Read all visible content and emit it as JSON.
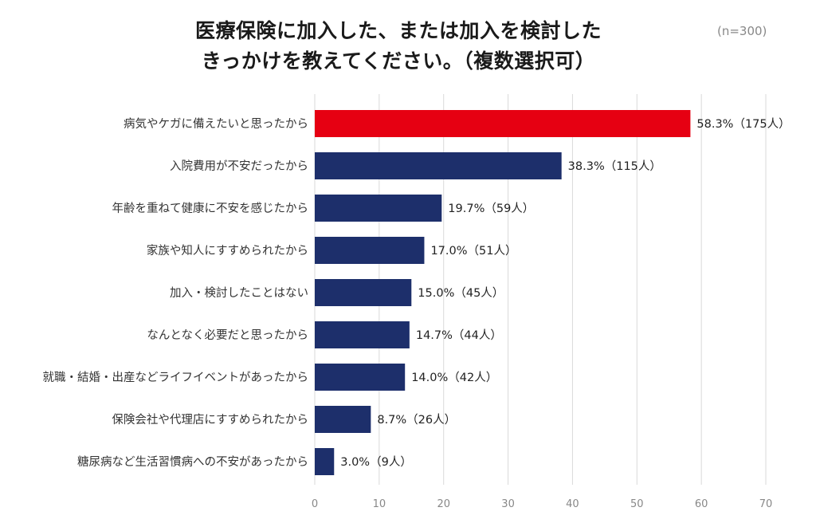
{
  "title": {
    "line1": "医療保険に加入した、または加入を検討した",
    "line2": "きっかけを教えてください。（複数選択可）"
  },
  "note": "(n=300)",
  "colors": {
    "highlight": "#e60012",
    "bar": "#1d2f6b",
    "grid": "#d9d9d9"
  },
  "chart_data": {
    "type": "bar",
    "orientation": "horizontal",
    "categories": [
      "病気やケガに備えたいと思ったから",
      "入院費用が不安だったから",
      "年齢を重ねて健康に不安を感じたから",
      "家族や知人にすすめられたから",
      "加入・検討したことはない",
      "なんとなく必要だと思ったから",
      "就職・結婚・出産などライフイベントがあったから",
      "保険会社や代理店にすすめられたから",
      "糖尿病など生活習慣病への不安があったから"
    ],
    "values": [
      58.3,
      38.3,
      19.7,
      17.0,
      15.0,
      14.7,
      14.0,
      8.7,
      3.0
    ],
    "data_labels": [
      "58.3%（175人）",
      "38.3%（115人）",
      "19.7%（59人）",
      "17.0%（51人）",
      "15.0%（45人）",
      "14.7%（44人）",
      "14.0%（42人）",
      "8.7%（26人）",
      "3.0%（9人）"
    ],
    "highlight_index": 0,
    "xlim": [
      0,
      70
    ],
    "xticks": [
      0,
      10,
      20,
      30,
      40,
      50,
      60,
      70
    ],
    "grid": true
  }
}
